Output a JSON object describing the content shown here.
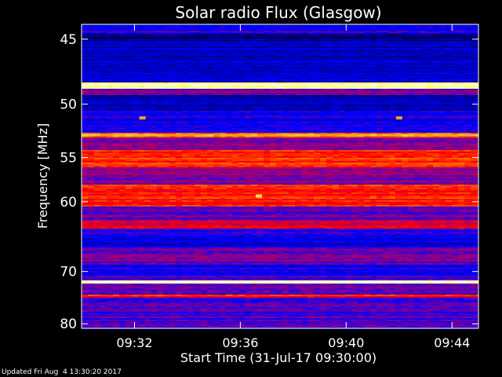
{
  "chart_data": {
    "type": "heatmap",
    "title": "Solar radio Flux (Glasgow)",
    "xlabel": "Start Time (31-Jul-17 09:30:00)",
    "ylabel": "Frequency [MHz]",
    "x_ticks": [
      "09:32",
      "09:36",
      "09:40",
      "09:44"
    ],
    "x_tick_minutes": [
      2,
      6,
      10,
      14
    ],
    "x_range_minutes": [
      0,
      15
    ],
    "y_ticks": [
      45,
      50,
      55,
      60,
      70,
      80
    ],
    "y_range_mhz": [
      44,
      81
    ],
    "y_scale": "reciprocal",
    "colormap": [
      "#000000",
      "#00008b",
      "#0000ff",
      "#8b008b",
      "#ff0000",
      "#ff8000",
      "#ffff80",
      "#ffffff"
    ],
    "bands": [
      {
        "from": 44.6,
        "to": 45.2,
        "level": 0.12
      },
      {
        "from": 45.2,
        "to": 48.2,
        "level": 0.22
      },
      {
        "from": 48.2,
        "to": 48.7,
        "level": 0.9
      },
      {
        "from": 48.7,
        "to": 49.2,
        "level": 0.4
      },
      {
        "from": 49.2,
        "to": 50.5,
        "level": 0.2
      },
      {
        "from": 50.5,
        "to": 52.5,
        "level": 0.28
      },
      {
        "from": 52.5,
        "to": 53.0,
        "level": 0.72
      },
      {
        "from": 53.0,
        "to": 54.2,
        "level": 0.42
      },
      {
        "from": 54.2,
        "to": 56.0,
        "level": 0.62
      },
      {
        "from": 56.0,
        "to": 58.0,
        "level": 0.42
      },
      {
        "from": 58.0,
        "to": 60.5,
        "level": 0.6
      },
      {
        "from": 60.5,
        "to": 62.5,
        "level": 0.38
      },
      {
        "from": 62.5,
        "to": 63.4,
        "level": 0.52
      },
      {
        "from": 63.4,
        "to": 64.8,
        "level": 0.32
      },
      {
        "from": 64.8,
        "to": 66.2,
        "level": 0.24
      },
      {
        "from": 66.2,
        "to": 68.8,
        "level": 0.4
      },
      {
        "from": 68.8,
        "to": 70.8,
        "level": 0.3
      },
      {
        "from": 70.8,
        "to": 71.6,
        "level": 0.36
      },
      {
        "from": 71.6,
        "to": 72.2,
        "level": 0.9
      },
      {
        "from": 72.2,
        "to": 74.0,
        "level": 0.4
      },
      {
        "from": 74.0,
        "to": 74.6,
        "level": 0.58
      },
      {
        "from": 74.6,
        "to": 81.0,
        "level": 0.36
      }
    ],
    "hotspots": [
      {
        "minute": 2.3,
        "mhz": 51.2,
        "level": 0.75
      },
      {
        "minute": 12.0,
        "mhz": 51.2,
        "level": 0.75
      },
      {
        "minute": 6.7,
        "mhz": 59.3,
        "level": 0.82
      }
    ]
  },
  "footer": "Updated Fri Aug  4 13:30:20 2017"
}
